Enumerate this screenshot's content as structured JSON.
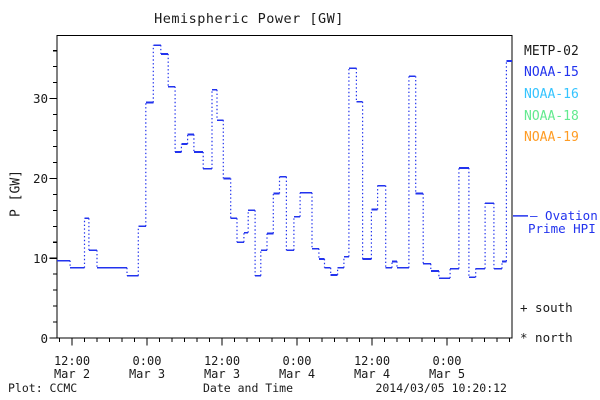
{
  "title": "Hemispheric Power [GW]",
  "colors": {
    "background": "#ffffff",
    "axis": "#000000",
    "text": "#1a1a1a",
    "hpi_line_blue": "#2233ee"
  },
  "y_axis": {
    "label": "P [GW]",
    "tick_labels": [
      "0",
      "10",
      "20",
      "30"
    ],
    "major_ticks": [
      0,
      10,
      20,
      30
    ],
    "minor_step": 2
  },
  "x_axis": {
    "label": "Date and Time",
    "ticks": [
      {
        "time": "12:00",
        "date": "Mar 2",
        "hour": 12
      },
      {
        "time": "0:00",
        "date": "Mar 3",
        "hour": 24
      },
      {
        "time": "12:00",
        "date": "Mar 3",
        "hour": 36
      },
      {
        "time": "0:00",
        "date": "Mar 4",
        "hour": 48
      },
      {
        "time": "12:00",
        "date": "Mar 4",
        "hour": 60
      },
      {
        "time": "0:00",
        "date": "Mar 5",
        "hour": 72
      }
    ],
    "minor_step_hours": 2
  },
  "legend": {
    "satellites": [
      {
        "label": "METP-02",
        "color": "#1a1a1a"
      },
      {
        "label": "NOAA-15",
        "color": "#2233ee"
      },
      {
        "label": "NOAA-16",
        "color": "#35c4ff"
      },
      {
        "label": "NOAA-18",
        "color": "#63ea8f"
      },
      {
        "label": "NOAA-19",
        "color": "#ff9c24"
      }
    ],
    "model_line1": "— Ovation",
    "model_line2": "Prime HPI",
    "marker_south": "+ south",
    "marker_north": "* north"
  },
  "footer": {
    "left": "Plot: CCMC",
    "right": "2014/03/05 10:20:12"
  },
  "chart_data": {
    "type": "line",
    "subtype": "step",
    "title": "Hemispheric Power [GW]",
    "xlabel": "Date and Time",
    "ylabel": "P [GW]",
    "x_unit": "hours since 2014-03-02 00:00",
    "xlim": [
      9.6,
      82.4
    ],
    "ylim": [
      0,
      37.9
    ],
    "grid": false,
    "legend_position": "right-outside",
    "x_major_ticks_hours": [
      12,
      24,
      36,
      48,
      60,
      72
    ],
    "x_minor_step_hours": 2,
    "y_major_ticks": [
      0,
      10,
      20,
      30
    ],
    "y_minor_step": 2,
    "hpi_pointer_gw": 15.3,
    "series": [
      {
        "name": "Ovation Prime HPI",
        "color": "#2233ee",
        "style": "steps-solid-horizontal-dotted-vertical",
        "steps_hour_value": [
          [
            9.6,
            9.7
          ],
          [
            11.7,
            8.8
          ],
          [
            14.0,
            15.0
          ],
          [
            14.7,
            11.0
          ],
          [
            16.0,
            8.8
          ],
          [
            20.8,
            7.8
          ],
          [
            22.6,
            14.0
          ],
          [
            23.8,
            29.5
          ],
          [
            25.0,
            36.7
          ],
          [
            26.2,
            35.6
          ],
          [
            27.4,
            31.5
          ],
          [
            28.5,
            23.3
          ],
          [
            29.5,
            24.3
          ],
          [
            30.5,
            25.5
          ],
          [
            31.5,
            23.3
          ],
          [
            33.0,
            21.2
          ],
          [
            34.4,
            31.1
          ],
          [
            35.2,
            27.3
          ],
          [
            36.2,
            20.0
          ],
          [
            37.4,
            15.0
          ],
          [
            38.4,
            12.0
          ],
          [
            39.5,
            13.2
          ],
          [
            40.2,
            16.0
          ],
          [
            41.3,
            7.8
          ],
          [
            42.2,
            11.0
          ],
          [
            43.2,
            13.1
          ],
          [
            44.2,
            18.1
          ],
          [
            45.2,
            20.2
          ],
          [
            46.3,
            11.0
          ],
          [
            47.5,
            15.2
          ],
          [
            48.5,
            18.2
          ],
          [
            50.4,
            11.2
          ],
          [
            51.5,
            9.9
          ],
          [
            52.4,
            8.8
          ],
          [
            53.4,
            7.9
          ],
          [
            54.5,
            8.8
          ],
          [
            55.5,
            10.2
          ],
          [
            56.3,
            33.8
          ],
          [
            57.5,
            29.6
          ],
          [
            58.5,
            9.9
          ],
          [
            59.9,
            16.1
          ],
          [
            60.9,
            19.1
          ],
          [
            62.2,
            8.8
          ],
          [
            63.2,
            9.6
          ],
          [
            64.0,
            8.8
          ],
          [
            65.9,
            32.8
          ],
          [
            67.0,
            18.1
          ],
          [
            68.2,
            9.3
          ],
          [
            69.4,
            8.4
          ],
          [
            70.7,
            7.5
          ],
          [
            72.5,
            8.7
          ],
          [
            73.9,
            21.3
          ],
          [
            75.5,
            7.6
          ],
          [
            76.6,
            8.7
          ],
          [
            78.1,
            16.9
          ],
          [
            79.5,
            8.7
          ],
          [
            80.8,
            9.6
          ],
          [
            81.5,
            34.7
          ]
        ]
      }
    ]
  }
}
